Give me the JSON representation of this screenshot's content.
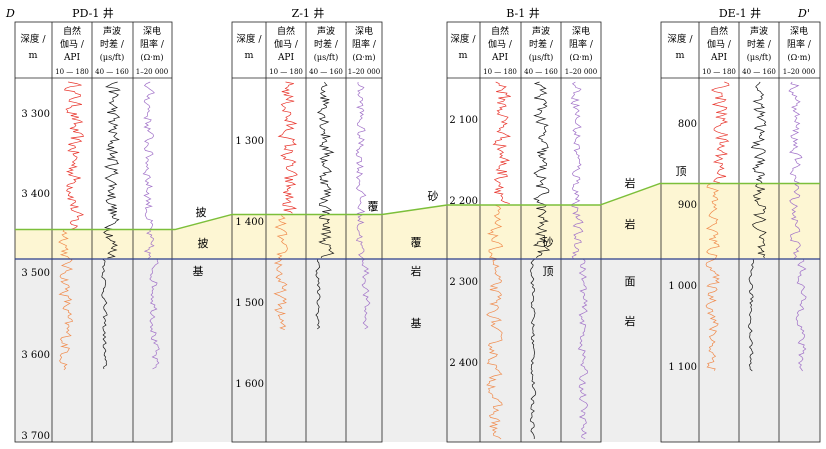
{
  "section": {
    "start_label": "D",
    "end_label": "D'"
  },
  "wells": [
    {
      "name": "PD-1 井",
      "depth_ticks": [
        {
          "label": "3 300",
          "value": 3300
        },
        {
          "label": "3 400",
          "value": 3400
        },
        {
          "label": "3 500",
          "value": 3500
        },
        {
          "label": "3 600",
          "value": 3600
        },
        {
          "label": "3 700",
          "value": 3700
        }
      ]
    },
    {
      "name": "Z-1 井",
      "depth_ticks": [
        {
          "label": "1 300",
          "value": 1300
        },
        {
          "label": "1 400",
          "value": 1400
        },
        {
          "label": "1 500",
          "value": 1500
        },
        {
          "label": "1 600",
          "value": 1600
        }
      ]
    },
    {
      "name": "B-1 井",
      "depth_ticks": [
        {
          "label": "2 100",
          "value": 2100
        },
        {
          "label": "2 200",
          "value": 2200
        },
        {
          "label": "2 300",
          "value": 2300
        },
        {
          "label": "2 400",
          "value": 2400
        }
      ]
    },
    {
      "name": "DE-1 井",
      "depth_ticks": [
        {
          "label": "800",
          "value": 800
        },
        {
          "label": "900",
          "value": 900
        },
        {
          "label": "1 000",
          "value": 1000
        },
        {
          "label": "1 100",
          "value": 1100
        }
      ]
    }
  ],
  "track_headers": {
    "depth": [
      "深度 /",
      "m"
    ],
    "gr": [
      "自然",
      "伽马 /",
      "API"
    ],
    "gr_scale": "10 — 180",
    "ac": [
      "声波",
      "时差 /",
      "(μs/ft)"
    ],
    "ac_scale": "40 — 160",
    "rt": [
      "深电",
      "阻率 /",
      "(Ω·m)"
    ],
    "rt_scale": "1–20 000"
  },
  "zones": {
    "cap_chars": [
      "披",
      "披",
      "覆",
      "覆",
      "砂",
      "砂",
      "岩",
      "岩",
      "顶"
    ],
    "base_chars": [
      "基",
      "岩",
      "基",
      "顶",
      "面",
      "岩"
    ]
  },
  "colors": {
    "cap_fill": "#fdf6d3",
    "base_fill": "#eeeeee",
    "top_line": "#7cbf3a",
    "base_line": "#2b3e8c",
    "gr_upper": "#e8332a",
    "gr_lower": "#f08a4b",
    "ac": "#111111",
    "rt": "#a070c8"
  }
}
